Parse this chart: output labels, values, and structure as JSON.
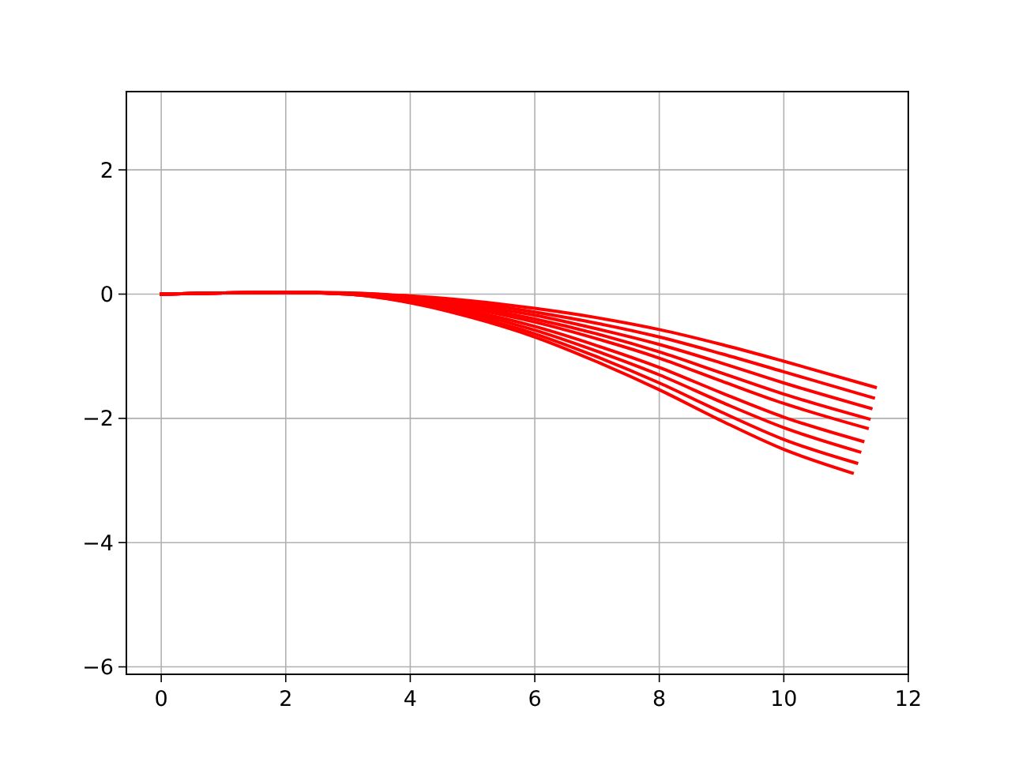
{
  "chart_data": {
    "type": "line",
    "xlim": [
      -0.56,
      12
    ],
    "ylim": [
      -6.12,
      3.26
    ],
    "xticks": [
      0,
      2,
      4,
      6,
      8,
      10,
      12
    ],
    "yticks": [
      {
        "value": -6,
        "label": "−6"
      },
      {
        "value": -4,
        "label": "−4"
      },
      {
        "value": -2,
        "label": "−2"
      },
      0,
      2
    ],
    "grid": true,
    "marker": "none",
    "line_style": "solid",
    "series": [
      {
        "color": "#ff0000",
        "x": [
          0,
          1,
          2,
          3,
          4,
          5,
          6,
          7,
          8,
          9,
          10,
          11.47
        ],
        "values": [
          0,
          0.02,
          0.03,
          0.02,
          -0.03,
          -0.11,
          -0.23,
          -0.38,
          -0.57,
          -0.81,
          -1.08,
          -1.5
        ]
      },
      {
        "color": "#ff0000",
        "x": [
          0,
          1,
          2,
          3,
          4,
          5,
          6,
          7,
          8,
          9,
          10,
          11.44
        ],
        "values": [
          0,
          0.02,
          0.03,
          0.02,
          -0.04,
          -0.14,
          -0.29,
          -0.47,
          -0.69,
          -0.96,
          -1.25,
          -1.67
        ]
      },
      {
        "color": "#ff0000",
        "x": [
          0,
          1,
          2,
          3,
          4,
          5,
          6,
          7,
          8,
          9,
          10,
          11.4
        ],
        "values": [
          0,
          0.02,
          0.03,
          0.01,
          -0.06,
          -0.18,
          -0.34,
          -0.56,
          -0.81,
          -1.11,
          -1.43,
          -1.84
        ]
      },
      {
        "color": "#ff0000",
        "x": [
          0,
          1,
          2,
          3,
          4,
          5,
          6,
          7,
          8,
          9,
          10,
          11.37
        ],
        "values": [
          0,
          0.02,
          0.03,
          0.01,
          -0.07,
          -0.21,
          -0.4,
          -0.64,
          -0.93,
          -1.27,
          -1.61,
          -2.01
        ]
      },
      {
        "color": "#ff0000",
        "x": [
          0,
          1,
          2,
          3,
          4,
          5,
          6,
          7,
          8,
          9,
          10,
          11.34
        ],
        "values": [
          0,
          0.02,
          0.03,
          0.01,
          -0.08,
          -0.24,
          -0.45,
          -0.72,
          -1.03,
          -1.4,
          -1.76,
          -2.16
        ]
      },
      {
        "color": "#ff0000",
        "x": [
          0,
          1,
          2,
          3,
          4,
          5,
          6,
          7,
          8,
          9,
          10,
          11.27
        ],
        "values": [
          0,
          0.02,
          0.03,
          0.01,
          -0.1,
          -0.28,
          -0.52,
          -0.83,
          -1.18,
          -1.59,
          -1.98,
          -2.37
        ]
      },
      {
        "color": "#ff0000",
        "x": [
          0,
          1,
          2,
          3,
          4,
          5,
          6,
          7,
          8,
          9,
          10,
          11.22
        ],
        "values": [
          0,
          0.02,
          0.03,
          0.0,
          -0.11,
          -0.31,
          -0.58,
          -0.92,
          -1.3,
          -1.74,
          -2.15,
          -2.54
        ]
      },
      {
        "color": "#ff0000",
        "x": [
          0,
          1,
          2,
          3,
          4,
          5,
          6,
          7,
          8,
          9,
          10,
          11.17
        ],
        "values": [
          0,
          0.02,
          0.03,
          0.0,
          -0.13,
          -0.35,
          -0.64,
          -1.01,
          -1.43,
          -1.9,
          -2.34,
          -2.72
        ]
      },
      {
        "color": "#ff0000",
        "x": [
          0,
          1,
          2,
          3,
          4,
          5,
          6,
          7,
          8,
          9,
          10,
          11.1
        ],
        "values": [
          0,
          0.02,
          0.03,
          0.0,
          -0.14,
          -0.38,
          -0.69,
          -1.09,
          -1.54,
          -2.04,
          -2.5,
          -2.88
        ]
      }
    ]
  }
}
